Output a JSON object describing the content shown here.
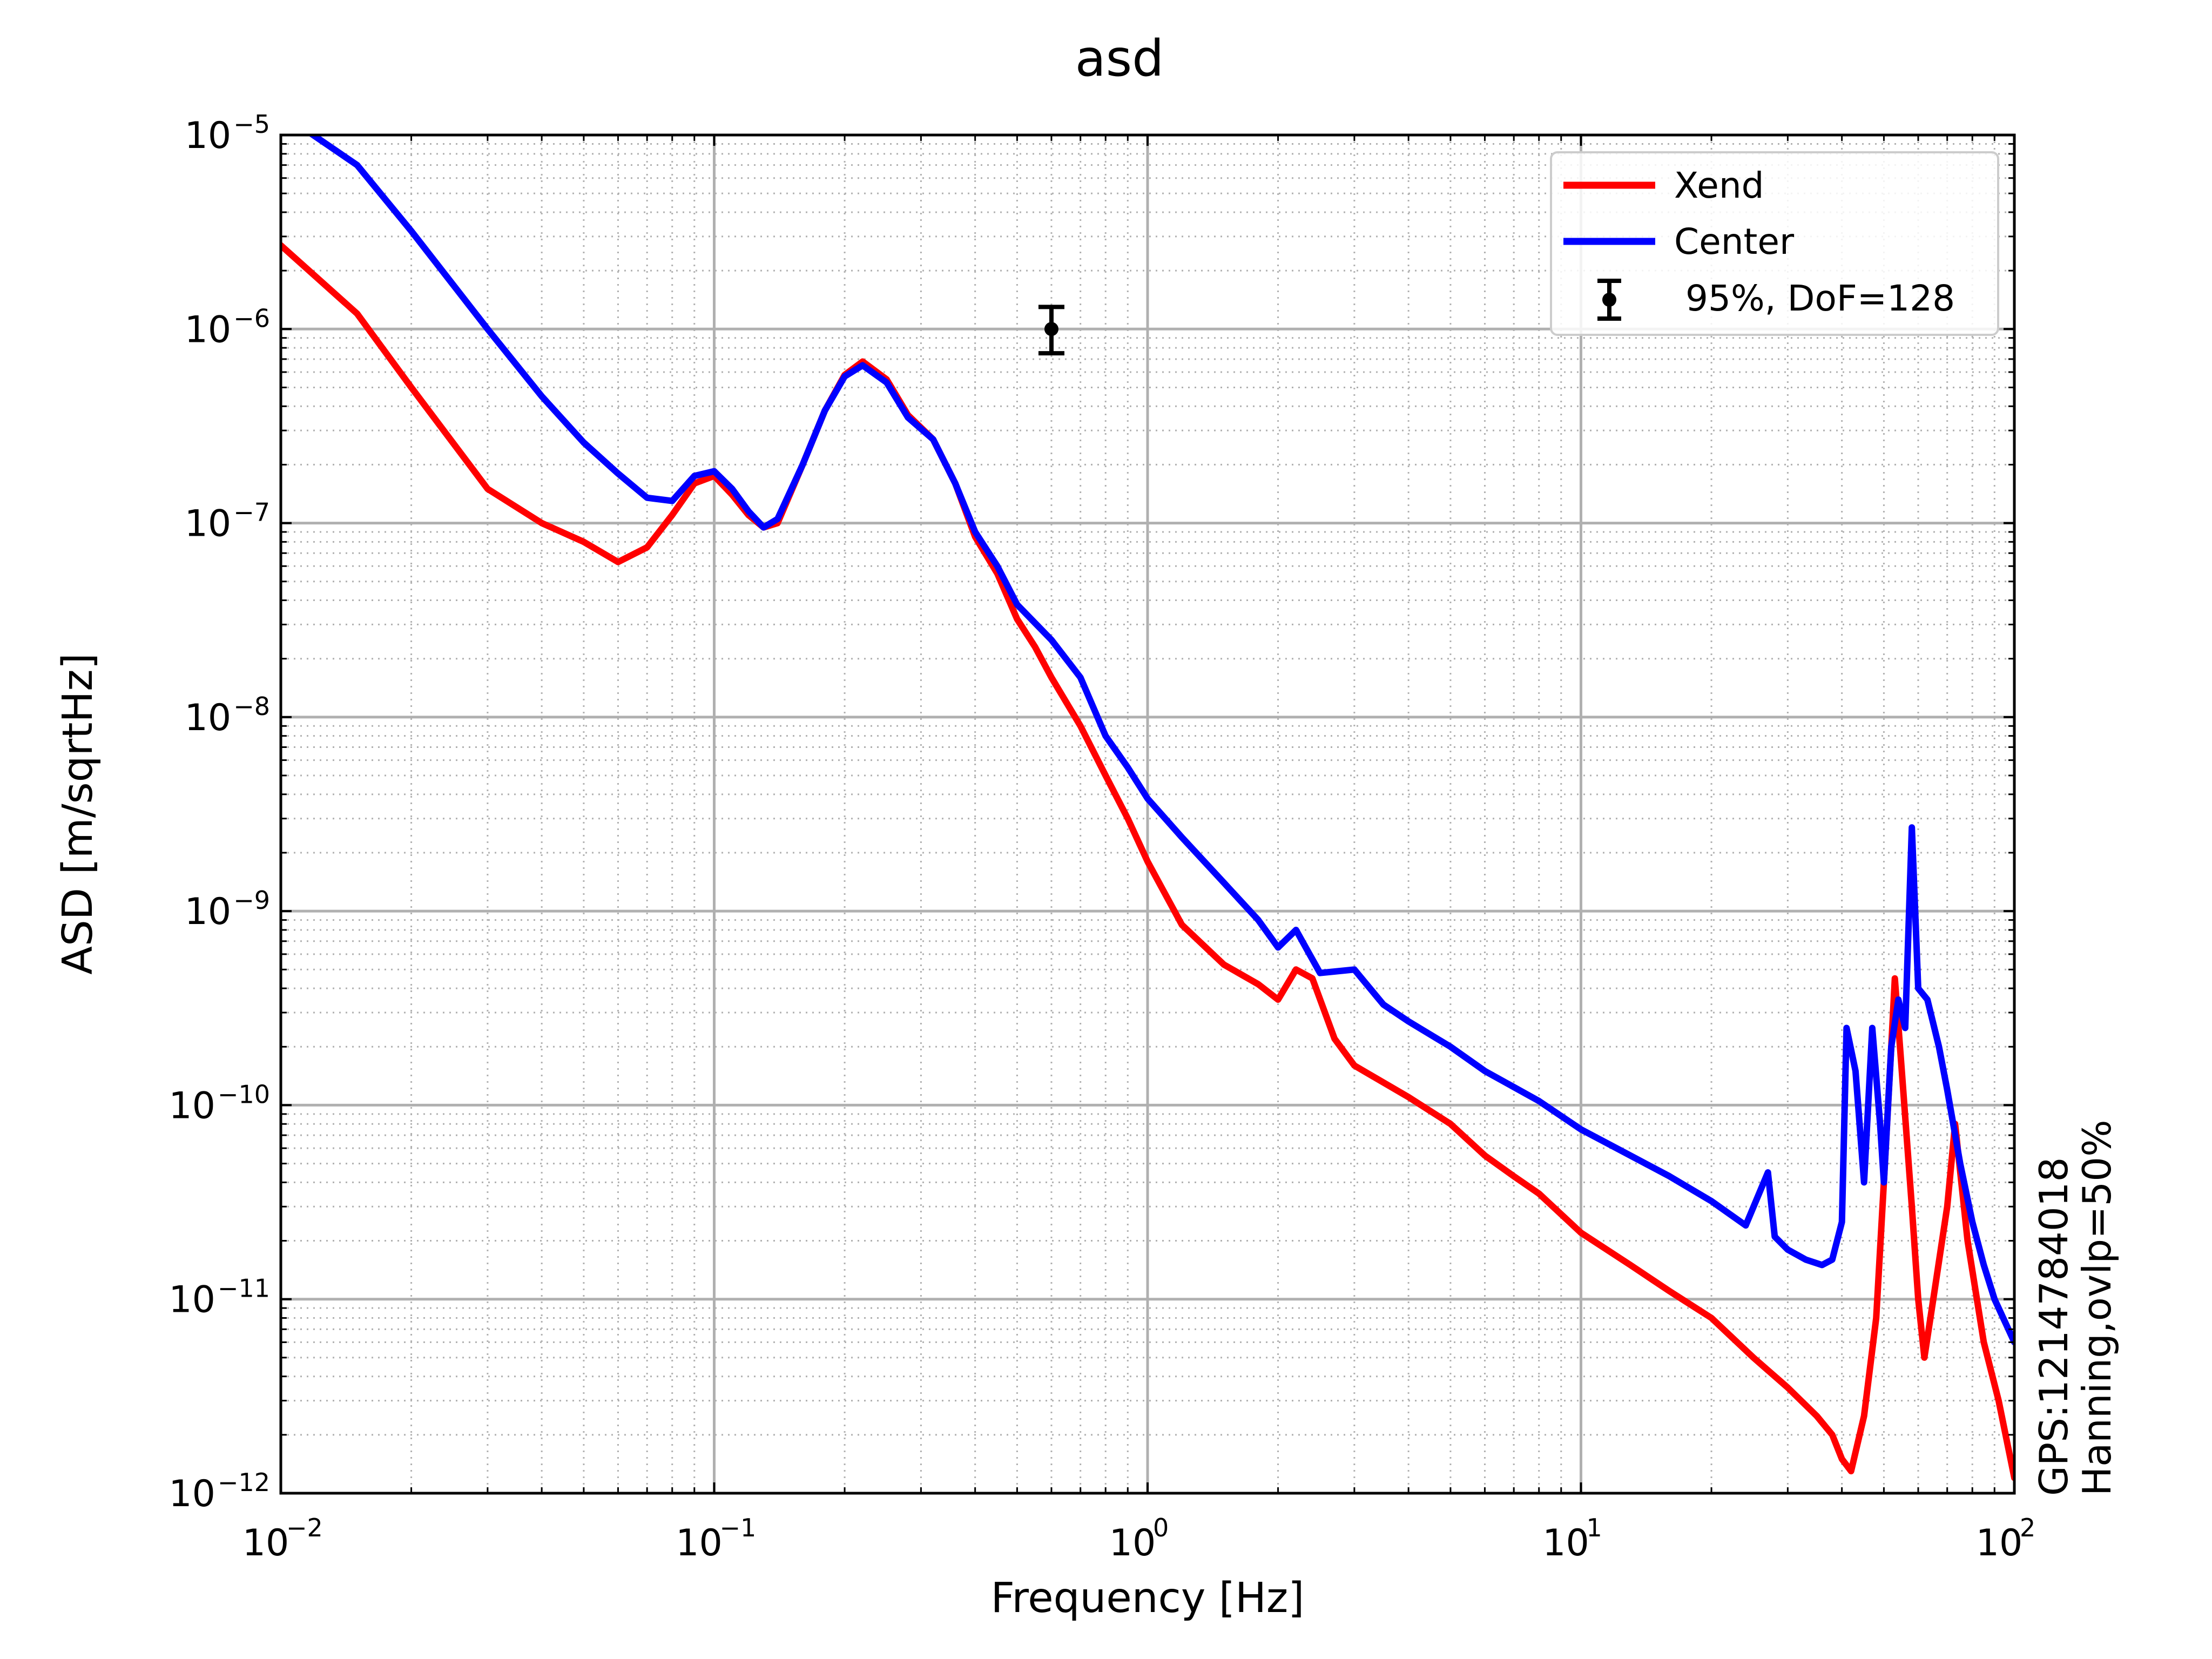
{
  "chart_data": {
    "type": "line",
    "title": "asd",
    "xlabel": "Frequency [Hz]",
    "ylabel": "ASD [m/sqrtHz]",
    "xscale": "log",
    "yscale": "log",
    "xlim": [
      0.01,
      100
    ],
    "ylim": [
      1e-12,
      1e-05
    ],
    "grid": "major and minor",
    "legend_position": "top-right",
    "x_ticks": [
      {
        "base": "10",
        "exp": "−2"
      },
      {
        "base": "10",
        "exp": "−1"
      },
      {
        "base": "10",
        "exp": "0"
      },
      {
        "base": "10",
        "exp": "1"
      },
      {
        "base": "10",
        "exp": "2"
      }
    ],
    "y_ticks": [
      {
        "base": "10",
        "exp": "−12"
      },
      {
        "base": "10",
        "exp": "−11"
      },
      {
        "base": "10",
        "exp": "−10"
      },
      {
        "base": "10",
        "exp": "−9"
      },
      {
        "base": "10",
        "exp": "−8"
      },
      {
        "base": "10",
        "exp": "−7"
      },
      {
        "base": "10",
        "exp": "−6"
      },
      {
        "base": "10",
        "exp": "−5"
      }
    ],
    "series": [
      {
        "name": "Xend",
        "color": "#ff0000",
        "points": [
          [
            0.01,
            2.7e-06
          ],
          [
            0.015,
            1.2e-06
          ],
          [
            0.02,
            5e-07
          ],
          [
            0.03,
            1.5e-07
          ],
          [
            0.04,
            1e-07
          ],
          [
            0.05,
            8e-08
          ],
          [
            0.06,
            6.3e-08
          ],
          [
            0.07,
            7.5e-08
          ],
          [
            0.08,
            1.1e-07
          ],
          [
            0.09,
            1.6e-07
          ],
          [
            0.1,
            1.75e-07
          ],
          [
            0.11,
            1.4e-07
          ],
          [
            0.12,
            1.1e-07
          ],
          [
            0.13,
            9.5e-08
          ],
          [
            0.14,
            1e-07
          ],
          [
            0.16,
            2e-07
          ],
          [
            0.18,
            3.8e-07
          ],
          [
            0.2,
            5.8e-07
          ],
          [
            0.22,
            6.8e-07
          ],
          [
            0.25,
            5.5e-07
          ],
          [
            0.28,
            3.6e-07
          ],
          [
            0.32,
            2.7e-07
          ],
          [
            0.36,
            1.6e-07
          ],
          [
            0.4,
            8.5e-08
          ],
          [
            0.45,
            5.5e-08
          ],
          [
            0.5,
            3.2e-08
          ],
          [
            0.55,
            2.3e-08
          ],
          [
            0.6,
            1.6e-08
          ],
          [
            0.7,
            9e-09
          ],
          [
            0.8,
            5e-09
          ],
          [
            0.9,
            3e-09
          ],
          [
            1.0,
            1.8e-09
          ],
          [
            1.2,
            8.5e-10
          ],
          [
            1.5,
            5.3e-10
          ],
          [
            1.8,
            4.2e-10
          ],
          [
            2.0,
            3.5e-10
          ],
          [
            2.2,
            5e-10
          ],
          [
            2.4,
            4.5e-10
          ],
          [
            2.7,
            2.2e-10
          ],
          [
            3.0,
            1.6e-10
          ],
          [
            4.0,
            1.1e-10
          ],
          [
            5.0,
            8e-11
          ],
          [
            6.0,
            5.5e-11
          ],
          [
            7.0,
            4.3e-11
          ],
          [
            8.0,
            3.5e-11
          ],
          [
            10.0,
            2.2e-11
          ],
          [
            13.0,
            1.5e-11
          ],
          [
            16.0,
            1.1e-11
          ],
          [
            20.0,
            8e-12
          ],
          [
            25.0,
            5e-12
          ],
          [
            30.0,
            3.5e-12
          ],
          [
            35.0,
            2.5e-12
          ],
          [
            38.0,
            2e-12
          ],
          [
            40.0,
            1.5e-12
          ],
          [
            42.0,
            1.3e-12
          ],
          [
            45.0,
            2.5e-12
          ],
          [
            48.0,
            8e-12
          ],
          [
            50.0,
            4e-11
          ],
          [
            52.0,
            2e-10
          ],
          [
            53.0,
            4.5e-10
          ],
          [
            55.0,
            1.5e-10
          ],
          [
            58.0,
            3e-11
          ],
          [
            60.0,
            1e-11
          ],
          [
            62.0,
            5e-12
          ],
          [
            65.0,
            1e-11
          ],
          [
            70.0,
            3e-11
          ],
          [
            73.0,
            8e-11
          ],
          [
            78.0,
            2e-11
          ],
          [
            85.0,
            6e-12
          ],
          [
            92.0,
            3e-12
          ],
          [
            100.0,
            1.2e-12
          ]
        ]
      },
      {
        "name": "Center",
        "color": "#0000ff",
        "points": [
          [
            0.01,
            1.3e-05
          ],
          [
            0.015,
            7e-06
          ],
          [
            0.02,
            3.2e-06
          ],
          [
            0.03,
            1e-06
          ],
          [
            0.04,
            4.5e-07
          ],
          [
            0.05,
            2.6e-07
          ],
          [
            0.06,
            1.8e-07
          ],
          [
            0.07,
            1.35e-07
          ],
          [
            0.08,
            1.3e-07
          ],
          [
            0.09,
            1.75e-07
          ],
          [
            0.1,
            1.85e-07
          ],
          [
            0.11,
            1.5e-07
          ],
          [
            0.12,
            1.15e-07
          ],
          [
            0.13,
            9.5e-08
          ],
          [
            0.14,
            1.05e-07
          ],
          [
            0.16,
            2e-07
          ],
          [
            0.18,
            3.8e-07
          ],
          [
            0.2,
            5.7e-07
          ],
          [
            0.22,
            6.5e-07
          ],
          [
            0.25,
            5.3e-07
          ],
          [
            0.28,
            3.5e-07
          ],
          [
            0.32,
            2.7e-07
          ],
          [
            0.36,
            1.6e-07
          ],
          [
            0.4,
            9e-08
          ],
          [
            0.45,
            6e-08
          ],
          [
            0.5,
            3.8e-08
          ],
          [
            0.6,
            2.5e-08
          ],
          [
            0.7,
            1.6e-08
          ],
          [
            0.8,
            8e-09
          ],
          [
            0.9,
            5.5e-09
          ],
          [
            1.0,
            3.8e-09
          ],
          [
            1.2,
            2.4e-09
          ],
          [
            1.5,
            1.4e-09
          ],
          [
            1.8,
            9e-10
          ],
          [
            2.0,
            6.5e-10
          ],
          [
            2.2,
            8e-10
          ],
          [
            2.5,
            4.8e-10
          ],
          [
            3.0,
            5e-10
          ],
          [
            3.5,
            3.3e-10
          ],
          [
            4.0,
            2.7e-10
          ],
          [
            5.0,
            2e-10
          ],
          [
            6.0,
            1.5e-10
          ],
          [
            8.0,
            1.05e-10
          ],
          [
            10.0,
            7.5e-11
          ],
          [
            13.0,
            5.5e-11
          ],
          [
            16.0,
            4.3e-11
          ],
          [
            20.0,
            3.2e-11
          ],
          [
            24.0,
            2.4e-11
          ],
          [
            27.0,
            4.5e-11
          ],
          [
            28.0,
            2.1e-11
          ],
          [
            30.0,
            1.8e-11
          ],
          [
            33.0,
            1.6e-11
          ],
          [
            36.0,
            1.5e-11
          ],
          [
            38.0,
            1.6e-11
          ],
          [
            40.0,
            2.5e-11
          ],
          [
            41.0,
            2.5e-10
          ],
          [
            43.0,
            1.5e-10
          ],
          [
            45.0,
            4e-11
          ],
          [
            47.0,
            2.5e-10
          ],
          [
            49.0,
            8e-11
          ],
          [
            50.0,
            4e-11
          ],
          [
            52.0,
            2e-10
          ],
          [
            54.0,
            3.5e-10
          ],
          [
            56.0,
            2.5e-10
          ],
          [
            58.0,
            2.7e-09
          ],
          [
            60.0,
            4e-10
          ],
          [
            63.0,
            3.5e-10
          ],
          [
            67.0,
            2e-10
          ],
          [
            70.0,
            1.2e-10
          ],
          [
            75.0,
            5e-11
          ],
          [
            80.0,
            2.5e-11
          ],
          [
            85.0,
            1.5e-11
          ],
          [
            90.0,
            1e-11
          ],
          [
            100.0,
            6e-12
          ]
        ]
      }
    ],
    "legend": {
      "items": [
        {
          "label": "Xend",
          "color": "#ff0000",
          "marker": "line"
        },
        {
          "label": "Center",
          "color": "#0000ff",
          "marker": "line"
        },
        {
          "label": " 95%, DoF=128",
          "color": "#000000",
          "marker": "errorbar"
        }
      ]
    },
    "errorbar_marker": {
      "x": 0.6,
      "y": 1e-06,
      "y_low": 7.5e-07,
      "y_high": 1.3e-06,
      "color": "#000000"
    },
    "side_annotations": [
      "GPS:1214784018",
      "Hanning,ovlp=50%"
    ]
  }
}
